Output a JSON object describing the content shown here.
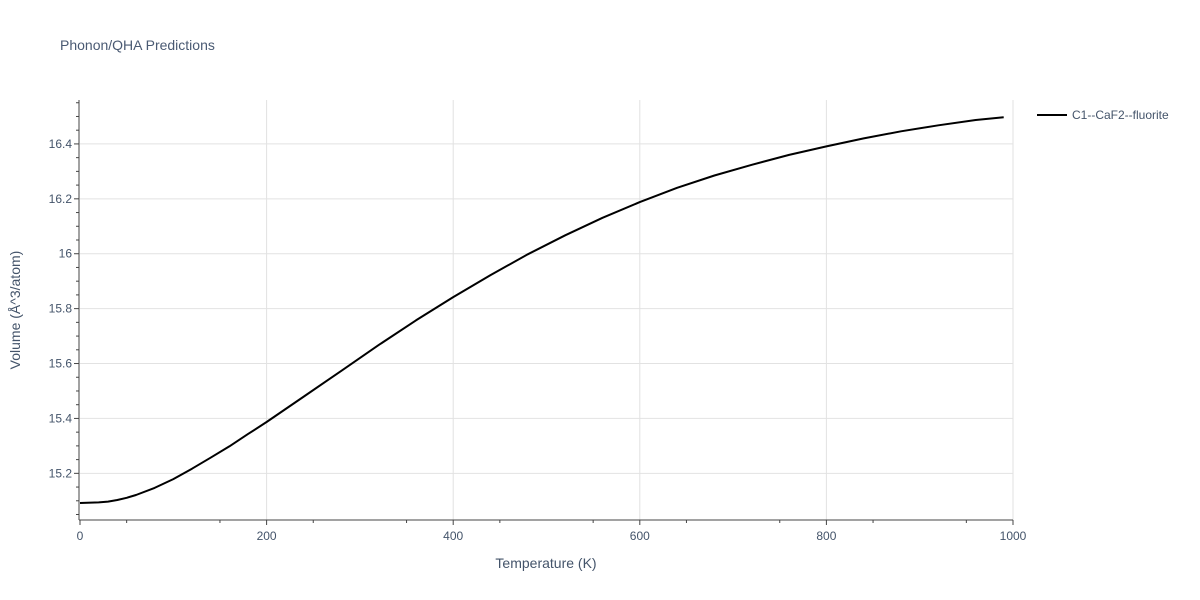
{
  "chart_data": {
    "type": "line",
    "title": "Phonon/QHA Predictions",
    "xlabel": "Temperature (K)",
    "ylabel": "Volume (Å^3/atom)",
    "xlim": [
      0,
      1000
    ],
    "ylim": [
      15.03,
      16.56
    ],
    "x_ticks": [
      0,
      200,
      400,
      600,
      800,
      1000
    ],
    "x_tick_labels": [
      "0",
      "200",
      "400",
      "600",
      "800",
      "1000"
    ],
    "y_ticks": [
      15.2,
      15.4,
      15.6,
      15.8,
      16.0,
      16.2,
      16.4
    ],
    "y_tick_labels": [
      "15.2",
      "15.4",
      "15.6",
      "15.8",
      "16",
      "16.2",
      "16.4"
    ],
    "grid": true,
    "legend_position": "top-right",
    "series": [
      {
        "name": "C1--CaF2--fluorite",
        "color": "#000000",
        "x": [
          0,
          20,
          30,
          40,
          50,
          60,
          80,
          100,
          120,
          140,
          160,
          180,
          200,
          240,
          280,
          320,
          360,
          400,
          440,
          480,
          520,
          560,
          600,
          640,
          680,
          720,
          760,
          800,
          840,
          880,
          920,
          960,
          990
        ],
        "y": [
          15.092,
          15.094,
          15.097,
          15.103,
          15.111,
          15.121,
          15.147,
          15.179,
          15.217,
          15.257,
          15.298,
          15.343,
          15.387,
          15.48,
          15.573,
          15.667,
          15.757,
          15.842,
          15.922,
          15.998,
          16.067,
          16.131,
          16.188,
          16.24,
          16.285,
          16.324,
          16.36,
          16.391,
          16.42,
          16.446,
          16.468,
          16.487,
          16.497
        ]
      }
    ]
  }
}
